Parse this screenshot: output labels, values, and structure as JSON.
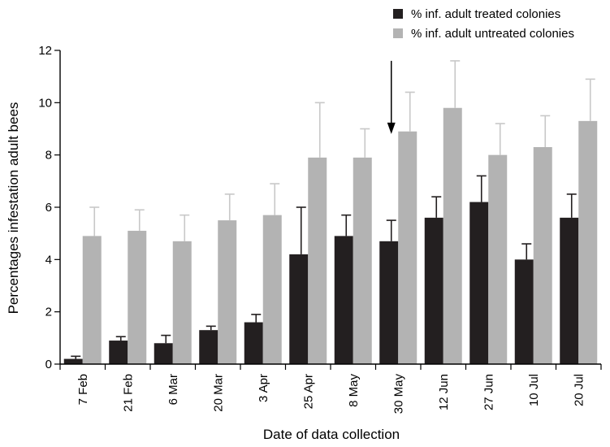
{
  "chart_data": {
    "type": "bar",
    "title": "",
    "xlabel": "Date of data collection",
    "ylabel": "Percentages infestation adult bees",
    "ylim": [
      0,
      12
    ],
    "yticks": [
      0,
      2,
      4,
      6,
      8,
      10,
      12
    ],
    "grid": false,
    "legend_position": "top-right",
    "categories": [
      "7 Feb",
      "21 Feb",
      "6 Mar",
      "20 Mar",
      "3 Apr",
      "25 Apr",
      "8 May",
      "30 May",
      "12 Jun",
      "27 Jun",
      "10 Jul",
      "20 Jul"
    ],
    "series": [
      {
        "name": "% inf. adult treated colonies",
        "color": "#231f20",
        "values": [
          0.2,
          0.9,
          0.8,
          1.3,
          1.6,
          4.2,
          4.9,
          4.7,
          5.6,
          6.2,
          4.0,
          5.6
        ],
        "error": [
          0.1,
          0.15,
          0.3,
          0.15,
          0.3,
          1.8,
          0.8,
          0.8,
          0.8,
          1.0,
          0.6,
          0.9
        ]
      },
      {
        "name": "% inf. adult untreated colonies",
        "color": "#b3b3b3",
        "values": [
          4.9,
          5.1,
          4.7,
          5.5,
          5.7,
          7.9,
          7.9,
          8.9,
          9.8,
          8.0,
          8.3,
          9.3
        ],
        "error": [
          1.1,
          0.8,
          1.0,
          1.0,
          1.2,
          2.1,
          1.1,
          1.5,
          1.8,
          1.2,
          1.2,
          1.6
        ]
      }
    ],
    "annotations": [
      {
        "type": "arrow",
        "category": "30 May",
        "from_y": 11.6,
        "to_y": 8.8
      }
    ]
  }
}
